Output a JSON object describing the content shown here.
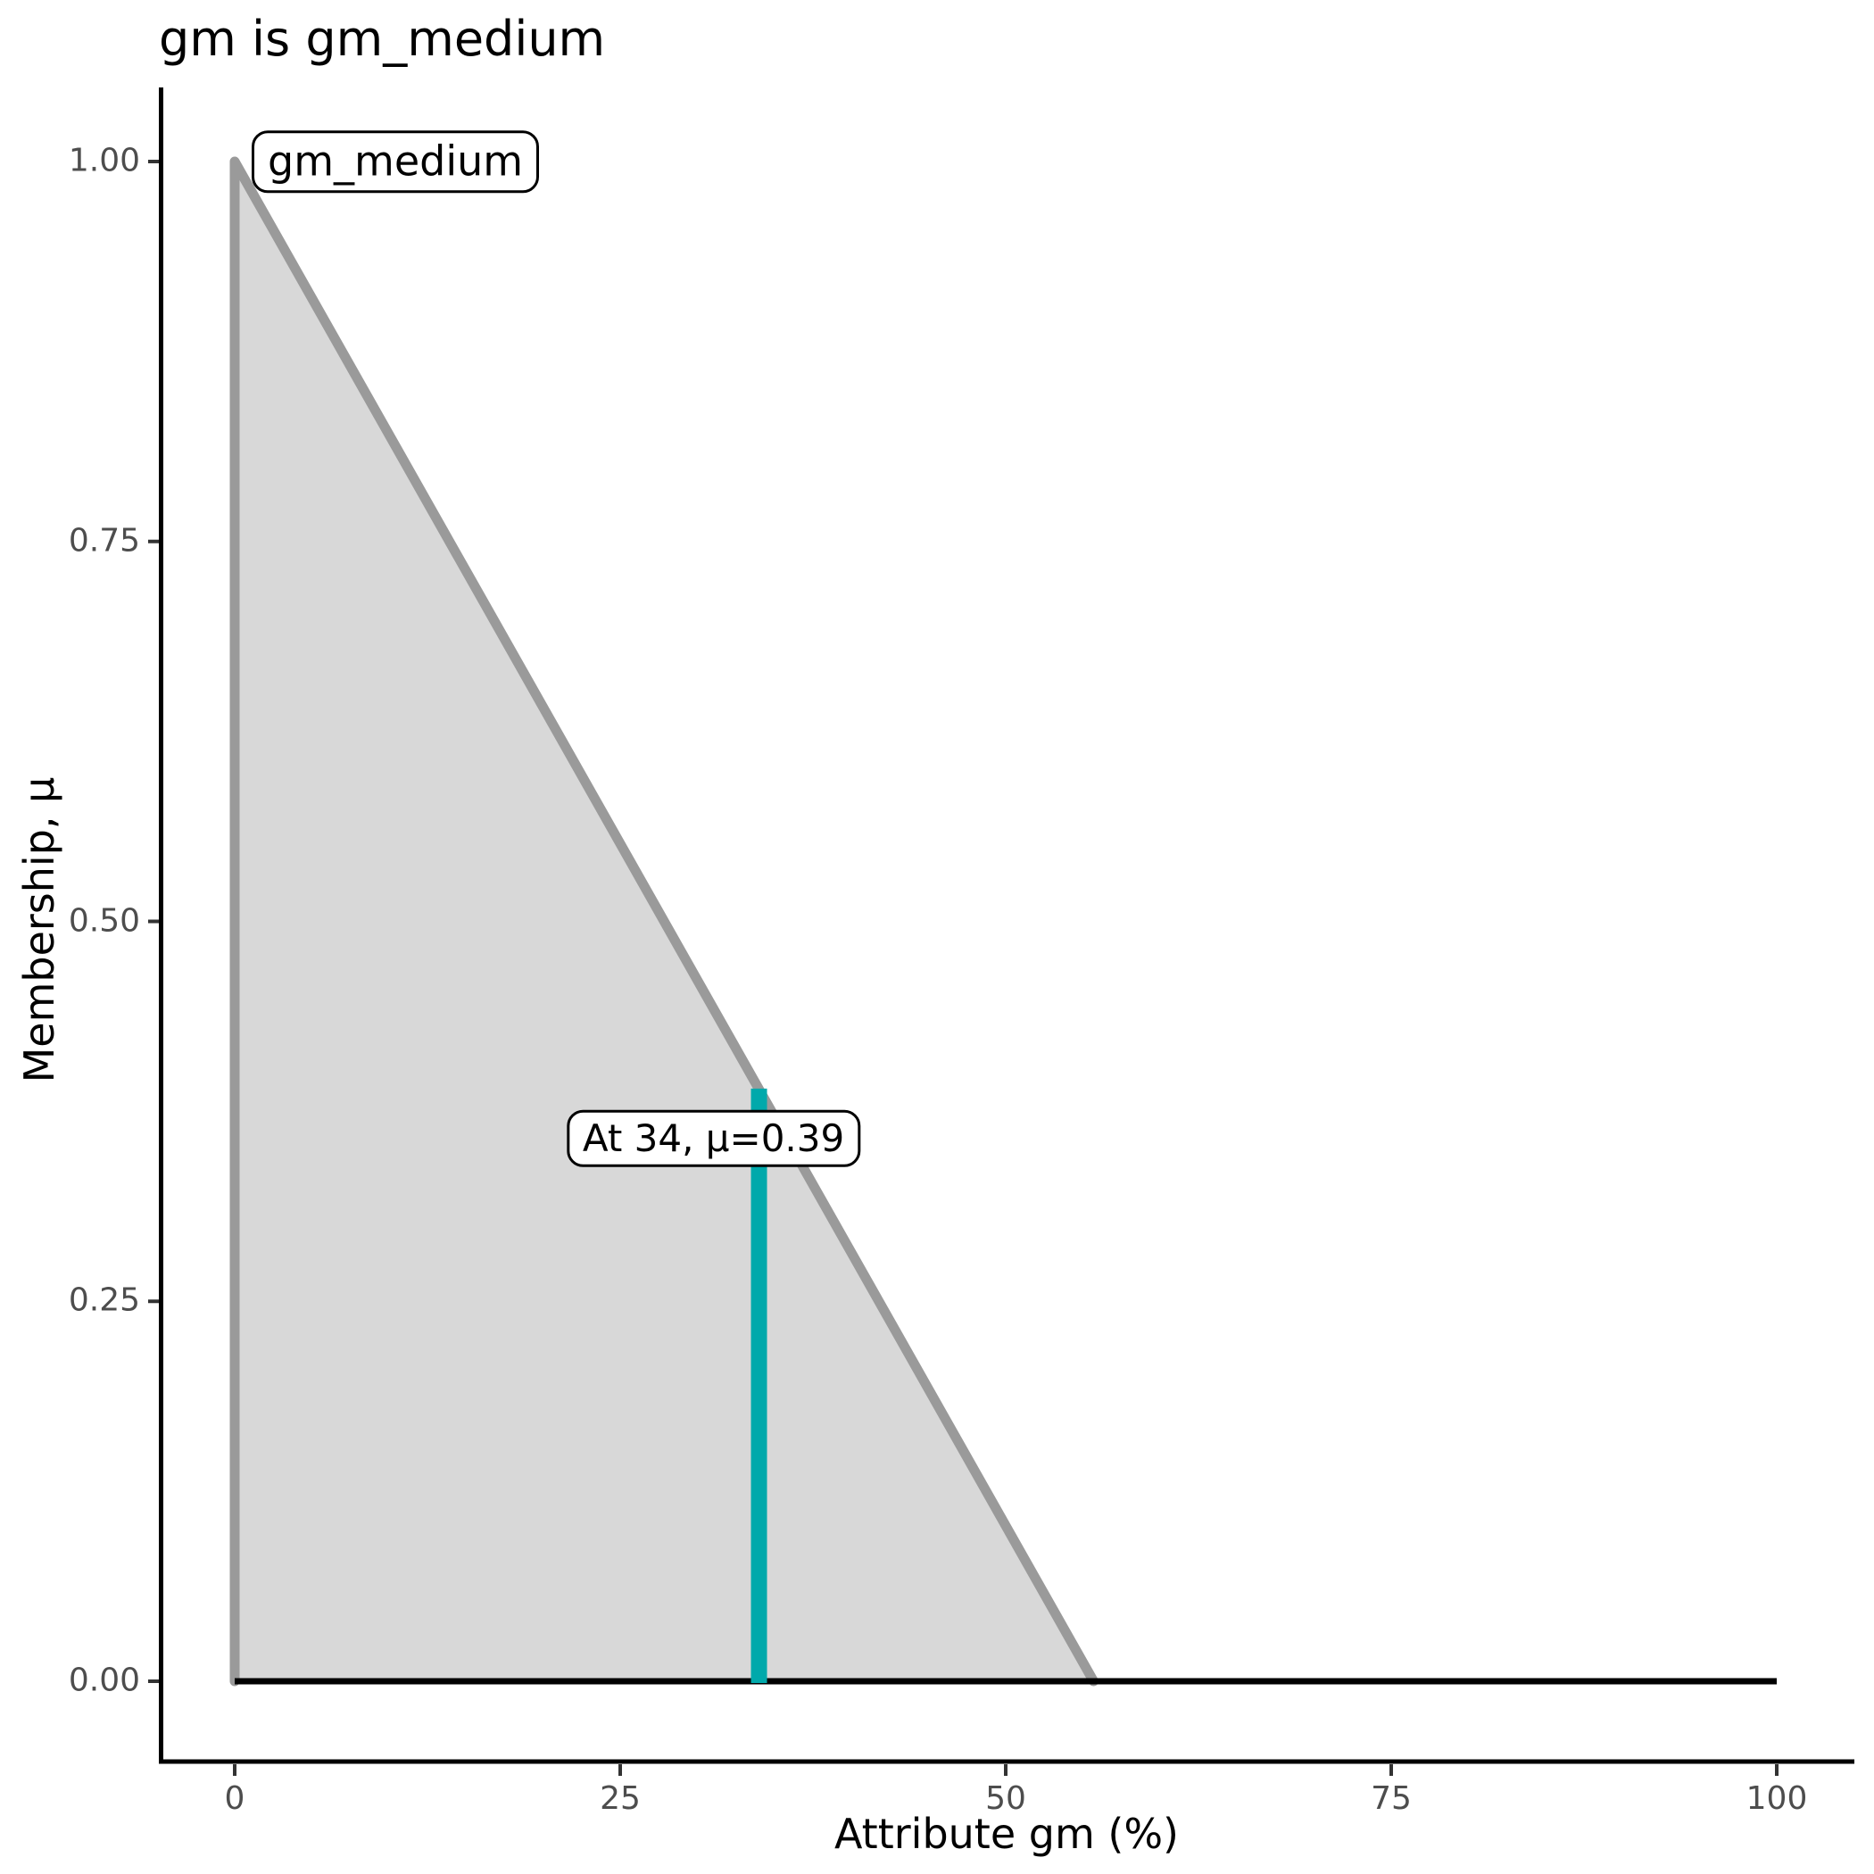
{
  "title": "gm is gm_medium",
  "axes": {
    "x": {
      "label": "Attribute gm (%)",
      "tick_labels": [
        "0",
        "25",
        "50",
        "75",
        "100"
      ]
    },
    "y": {
      "label": "Membership, μ",
      "tick_labels": [
        "0.00",
        "0.25",
        "0.50",
        "0.75",
        "1.00"
      ]
    }
  },
  "colors": {
    "area_fill": "#D8D8D8",
    "area_outline": "#9A9A9A",
    "highlight": "#00A9AB",
    "baseline": "#000000",
    "axis_line": "#000000",
    "tick_mark": "#333333",
    "tick_label": "#4D4D4D",
    "annotation_border": "#000000",
    "annotation_bg": "#FFFFFF"
  },
  "chart_data": {
    "type": "area",
    "title": "gm is gm_medium",
    "xlabel": "Attribute gm (%)",
    "ylabel": "Membership, μ",
    "xlim": [
      0,
      100
    ],
    "ylim": [
      0,
      1
    ],
    "x_ticks": [
      0,
      25,
      50,
      75,
      100
    ],
    "y_ticks": [
      0,
      0.25,
      0.5,
      0.75,
      1
    ],
    "grid": false,
    "legend": false,
    "membership_function": {
      "name": "gm_medium",
      "label": "gm_medium",
      "shape": "triangle",
      "vertices_x_mu": [
        [
          0,
          0
        ],
        [
          0,
          1
        ],
        [
          55.7,
          0
        ]
      ]
    },
    "baseline": {
      "x_from": 0,
      "x_to": 100,
      "mu": 0
    },
    "highlight": {
      "x": 34,
      "mu": 0.39,
      "label": "At 34, μ=0.39"
    }
  }
}
